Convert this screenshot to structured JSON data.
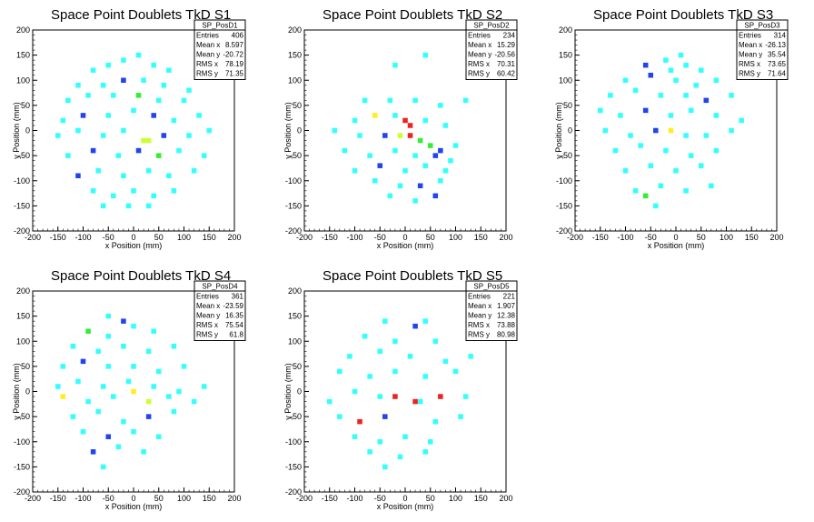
{
  "chart_data": [
    {
      "type": "heatmap",
      "title": "Space Point Doublets TkD S1",
      "xlabel": "x Position (mm)",
      "ylabel": "y Position (mm)",
      "xlim": [
        -200,
        200
      ],
      "ylim": [
        -200,
        200
      ],
      "xticks": [
        -200,
        -150,
        -100,
        -50,
        0,
        50,
        100,
        150,
        200
      ],
      "yticks": [
        -200,
        -150,
        -100,
        -50,
        0,
        50,
        100,
        150,
        200
      ],
      "stats": {
        "name": "SP_PosD1",
        "rows": [
          {
            "label": "Entries",
            "value": "406"
          },
          {
            "label": "Mean x",
            "value": "8.597"
          },
          {
            "label": "Mean y",
            "value": "-20.72"
          },
          {
            "label": "RMS x",
            "value": "78.19"
          },
          {
            "label": "RMS y",
            "value": "71.35"
          }
        ]
      },
      "bin_size": 10,
      "points": [
        [
          -80,
          120,
          1
        ],
        [
          -50,
          130,
          1
        ],
        [
          -20,
          140,
          1
        ],
        [
          10,
          150,
          1
        ],
        [
          40,
          130,
          1
        ],
        [
          70,
          120,
          1
        ],
        [
          -110,
          90,
          1
        ],
        [
          -60,
          90,
          1
        ],
        [
          -20,
          100,
          2
        ],
        [
          20,
          100,
          1
        ],
        [
          60,
          90,
          1
        ],
        [
          110,
          80,
          1
        ],
        [
          -130,
          60,
          1
        ],
        [
          -90,
          70,
          1
        ],
        [
          -40,
          70,
          1
        ],
        [
          10,
          70,
          3
        ],
        [
          50,
          60,
          1
        ],
        [
          100,
          60,
          1
        ],
        [
          -140,
          20,
          1
        ],
        [
          -100,
          30,
          2
        ],
        [
          -50,
          30,
          1
        ],
        [
          0,
          40,
          1
        ],
        [
          40,
          30,
          2
        ],
        [
          80,
          20,
          1
        ],
        [
          130,
          30,
          1
        ],
        [
          -150,
          -10,
          1
        ],
        [
          -110,
          0,
          1
        ],
        [
          -60,
          -10,
          1
        ],
        [
          -20,
          0,
          1
        ],
        [
          20,
          -20,
          4
        ],
        [
          30,
          -20,
          4
        ],
        [
          60,
          -10,
          2
        ],
        [
          110,
          -10,
          1
        ],
        [
          150,
          0,
          1
        ],
        [
          -130,
          -50,
          1
        ],
        [
          -80,
          -40,
          2
        ],
        [
          -30,
          -50,
          1
        ],
        [
          10,
          -40,
          2
        ],
        [
          50,
          -50,
          3
        ],
        [
          90,
          -40,
          1
        ],
        [
          140,
          -50,
          1
        ],
        [
          -110,
          -90,
          2
        ],
        [
          -70,
          -80,
          1
        ],
        [
          -20,
          -90,
          1
        ],
        [
          30,
          -80,
          1
        ],
        [
          70,
          -90,
          1
        ],
        [
          120,
          -80,
          1
        ],
        [
          -80,
          -120,
          1
        ],
        [
          -40,
          -130,
          1
        ],
        [
          0,
          -120,
          1
        ],
        [
          40,
          -130,
          1
        ],
        [
          80,
          -120,
          1
        ],
        [
          -60,
          -150,
          1
        ],
        [
          -10,
          -150,
          1
        ],
        [
          30,
          -150,
          1
        ]
      ]
    },
    {
      "type": "heatmap",
      "title": "Space Point Doublets TkD S2",
      "xlabel": "x Position (mm)",
      "ylabel": "y Position (mm)",
      "xlim": [
        -200,
        200
      ],
      "ylim": [
        -200,
        200
      ],
      "xticks": [
        -200,
        -150,
        -100,
        -50,
        0,
        50,
        100,
        150,
        200
      ],
      "yticks": [
        -200,
        -150,
        -100,
        -50,
        0,
        50,
        100,
        150,
        200
      ],
      "stats": {
        "name": "SP_PosD2",
        "rows": [
          {
            "label": "Entries",
            "value": "234"
          },
          {
            "label": "Mean x",
            "value": "15.29"
          },
          {
            "label": "Mean y",
            "value": "-20.56"
          },
          {
            "label": "RMS x",
            "value": "70.31"
          },
          {
            "label": "RMS y",
            "value": "60.42"
          }
        ]
      },
      "bin_size": 10,
      "points": [
        [
          -20,
          130,
          1
        ],
        [
          40,
          150,
          1
        ],
        [
          -80,
          60,
          1
        ],
        [
          -30,
          60,
          1
        ],
        [
          20,
          60,
          1
        ],
        [
          70,
          50,
          1
        ],
        [
          120,
          60,
          1
        ],
        [
          -100,
          20,
          1
        ],
        [
          -60,
          30,
          5
        ],
        [
          -20,
          30,
          1
        ],
        [
          0,
          20,
          6
        ],
        [
          10,
          10,
          6
        ],
        [
          40,
          20,
          1
        ],
        [
          80,
          10,
          1
        ],
        [
          -140,
          0,
          1
        ],
        [
          -90,
          -10,
          1
        ],
        [
          -40,
          -10,
          2
        ],
        [
          -10,
          -10,
          4
        ],
        [
          10,
          -10,
          6
        ],
        [
          30,
          -20,
          3
        ],
        [
          50,
          -30,
          3
        ],
        [
          70,
          -40,
          2
        ],
        [
          100,
          -30,
          1
        ],
        [
          -120,
          -40,
          1
        ],
        [
          -70,
          -50,
          1
        ],
        [
          -20,
          -40,
          1
        ],
        [
          20,
          -50,
          1
        ],
        [
          60,
          -50,
          2
        ],
        [
          90,
          -60,
          1
        ],
        [
          -100,
          -80,
          1
        ],
        [
          -50,
          -70,
          2
        ],
        [
          0,
          -80,
          1
        ],
        [
          40,
          -70,
          1
        ],
        [
          80,
          -80,
          1
        ],
        [
          -60,
          -100,
          1
        ],
        [
          -10,
          -110,
          1
        ],
        [
          30,
          -110,
          2
        ],
        [
          70,
          -100,
          1
        ],
        [
          -30,
          -130,
          1
        ],
        [
          20,
          -140,
          1
        ],
        [
          60,
          -130,
          2
        ]
      ]
    },
    {
      "type": "heatmap",
      "title": "Space Point Doublets TkD S3",
      "xlabel": "x Position (mm)",
      "ylabel": "y Position (mm)",
      "xlim": [
        -200,
        200
      ],
      "ylim": [
        -200,
        200
      ],
      "xticks": [
        -200,
        -150,
        -100,
        -50,
        0,
        50,
        100,
        150,
        200
      ],
      "yticks": [
        -200,
        -150,
        -100,
        -50,
        0,
        50,
        100,
        150,
        200
      ],
      "stats": {
        "name": "SP_PosD3",
        "rows": [
          {
            "label": "Entries",
            "value": "314"
          },
          {
            "label": "Mean x",
            "value": "-26.13"
          },
          {
            "label": "Mean y",
            "value": "35.54"
          },
          {
            "label": "RMS x",
            "value": "73.65"
          },
          {
            "label": "RMS y",
            "value": "71.64"
          }
        ]
      },
      "bin_size": 10,
      "points": [
        [
          -60,
          130,
          2
        ],
        [
          -20,
          140,
          1
        ],
        [
          10,
          150,
          1
        ],
        [
          -10,
          120,
          1
        ],
        [
          20,
          130,
          1
        ],
        [
          50,
          120,
          1
        ],
        [
          -100,
          100,
          1
        ],
        [
          -50,
          110,
          2
        ],
        [
          0,
          100,
          1
        ],
        [
          40,
          90,
          1
        ],
        [
          80,
          100,
          1
        ],
        [
          -130,
          70,
          1
        ],
        [
          -80,
          80,
          1
        ],
        [
          -30,
          70,
          1
        ],
        [
          20,
          70,
          1
        ],
        [
          60,
          60,
          2
        ],
        [
          110,
          70,
          1
        ],
        [
          -150,
          40,
          1
        ],
        [
          -110,
          30,
          1
        ],
        [
          -60,
          40,
          2
        ],
        [
          -10,
          30,
          1
        ],
        [
          30,
          40,
          1
        ],
        [
          80,
          30,
          1
        ],
        [
          130,
          20,
          1
        ],
        [
          -140,
          0,
          1
        ],
        [
          -90,
          -10,
          1
        ],
        [
          -40,
          0,
          2
        ],
        [
          -10,
          0,
          5
        ],
        [
          20,
          -10,
          1
        ],
        [
          60,
          -10,
          1
        ],
        [
          110,
          0,
          1
        ],
        [
          -120,
          -40,
          1
        ],
        [
          -70,
          -30,
          1
        ],
        [
          -20,
          -40,
          1
        ],
        [
          30,
          -50,
          1
        ],
        [
          80,
          -40,
          1
        ],
        [
          -100,
          -80,
          1
        ],
        [
          -50,
          -70,
          1
        ],
        [
          0,
          -80,
          1
        ],
        [
          50,
          -70,
          1
        ],
        [
          -80,
          -120,
          1
        ],
        [
          -30,
          -110,
          1
        ],
        [
          20,
          -120,
          1
        ],
        [
          70,
          -110,
          1
        ],
        [
          -60,
          -130,
          3
        ],
        [
          -40,
          -150,
          1
        ]
      ]
    },
    {
      "type": "heatmap",
      "title": "Space Point Doublets TkD S4",
      "xlabel": "x Position (mm)",
      "ylabel": "y Position (mm)",
      "xlim": [
        -200,
        200
      ],
      "ylim": [
        -200,
        200
      ],
      "xticks": [
        -200,
        -150,
        -100,
        -50,
        0,
        50,
        100,
        150,
        200
      ],
      "yticks": [
        -200,
        -150,
        -100,
        -50,
        0,
        50,
        100,
        150,
        200
      ],
      "stats": {
        "name": "SP_PosD4",
        "rows": [
          {
            "label": "Entries",
            "value": "361"
          },
          {
            "label": "Mean x",
            "value": "-23.59"
          },
          {
            "label": "Mean y",
            "value": "16.35"
          },
          {
            "label": "RMS x",
            "value": "75.54"
          },
          {
            "label": "RMS y",
            "value": "61.8"
          }
        ]
      },
      "bin_size": 10,
      "points": [
        [
          -50,
          150,
          1
        ],
        [
          -20,
          140,
          2
        ],
        [
          -90,
          120,
          3
        ],
        [
          -50,
          110,
          1
        ],
        [
          0,
          130,
          1
        ],
        [
          40,
          120,
          1
        ],
        [
          -120,
          90,
          1
        ],
        [
          -70,
          80,
          1
        ],
        [
          -20,
          90,
          1
        ],
        [
          30,
          80,
          1
        ],
        [
          80,
          90,
          1
        ],
        [
          -140,
          50,
          1
        ],
        [
          -100,
          60,
          2
        ],
        [
          -50,
          50,
          1
        ],
        [
          0,
          50,
          1
        ],
        [
          50,
          40,
          1
        ],
        [
          100,
          50,
          1
        ],
        [
          -150,
          10,
          1
        ],
        [
          -110,
          20,
          1
        ],
        [
          -60,
          10,
          1
        ],
        [
          -10,
          20,
          1
        ],
        [
          40,
          10,
          1
        ],
        [
          90,
          0,
          1
        ],
        [
          140,
          10,
          1
        ],
        [
          -140,
          -10,
          5
        ],
        [
          -90,
          -20,
          1
        ],
        [
          -40,
          -10,
          1
        ],
        [
          0,
          0,
          5
        ],
        [
          30,
          -20,
          4
        ],
        [
          70,
          -10,
          1
        ],
        [
          120,
          -20,
          1
        ],
        [
          -120,
          -50,
          1
        ],
        [
          -70,
          -40,
          1
        ],
        [
          -20,
          -60,
          1
        ],
        [
          30,
          -50,
          2
        ],
        [
          80,
          -40,
          1
        ],
        [
          -100,
          -80,
          1
        ],
        [
          -50,
          -90,
          2
        ],
        [
          0,
          -80,
          1
        ],
        [
          50,
          -90,
          1
        ],
        [
          -80,
          -120,
          2
        ],
        [
          -30,
          -110,
          1
        ],
        [
          20,
          -120,
          1
        ],
        [
          -60,
          -150,
          1
        ]
      ]
    },
    {
      "type": "heatmap",
      "title": "Space Point Doublets TkD S5",
      "xlabel": "x Position (mm)",
      "ylabel": "y Position (mm)",
      "xlim": [
        -200,
        200
      ],
      "ylim": [
        -200,
        200
      ],
      "xticks": [
        -200,
        -150,
        -100,
        -50,
        0,
        50,
        100,
        150,
        200
      ],
      "yticks": [
        -200,
        -150,
        -100,
        -50,
        0,
        50,
        100,
        150,
        200
      ],
      "stats": {
        "name": "SP_PosD5",
        "rows": [
          {
            "label": "Entries",
            "value": "221"
          },
          {
            "label": "Mean x",
            "value": "1.907"
          },
          {
            "label": "Mean y",
            "value": "12.38"
          },
          {
            "label": "RMS x",
            "value": "73.88"
          },
          {
            "label": "RMS y",
            "value": "80.98"
          }
        ]
      },
      "bin_size": 10,
      "points": [
        [
          -40,
          140,
          1
        ],
        [
          20,
          130,
          2
        ],
        [
          40,
          140,
          1
        ],
        [
          -80,
          110,
          1
        ],
        [
          -20,
          100,
          1
        ],
        [
          60,
          100,
          1
        ],
        [
          -110,
          70,
          1
        ],
        [
          -50,
          80,
          1
        ],
        [
          10,
          70,
          1
        ],
        [
          80,
          60,
          1
        ],
        [
          130,
          70,
          1
        ],
        [
          -130,
          40,
          1
        ],
        [
          -70,
          30,
          1
        ],
        [
          -20,
          40,
          1
        ],
        [
          40,
          30,
          1
        ],
        [
          100,
          40,
          1
        ],
        [
          -150,
          -20,
          1
        ],
        [
          -100,
          0,
          1
        ],
        [
          -50,
          -10,
          1
        ],
        [
          -20,
          -10,
          6
        ],
        [
          30,
          -20,
          1
        ],
        [
          70,
          -10,
          6
        ],
        [
          120,
          -10,
          1
        ],
        [
          -130,
          -50,
          1
        ],
        [
          -90,
          -60,
          6
        ],
        [
          -40,
          -50,
          2
        ],
        [
          20,
          -20,
          6
        ],
        [
          60,
          -60,
          1
        ],
        [
          110,
          -50,
          1
        ],
        [
          -100,
          -90,
          1
        ],
        [
          -50,
          -100,
          1
        ],
        [
          0,
          -90,
          1
        ],
        [
          50,
          -100,
          1
        ],
        [
          -70,
          -120,
          1
        ],
        [
          -10,
          -130,
          1
        ],
        [
          40,
          -120,
          1
        ],
        [
          -40,
          -150,
          1
        ]
      ]
    }
  ],
  "palette": [
    "#29b4e6",
    "#33ffff",
    "#2244ee",
    "#33ee33",
    "#ccff33",
    "#ffee22",
    "#ee2222"
  ]
}
